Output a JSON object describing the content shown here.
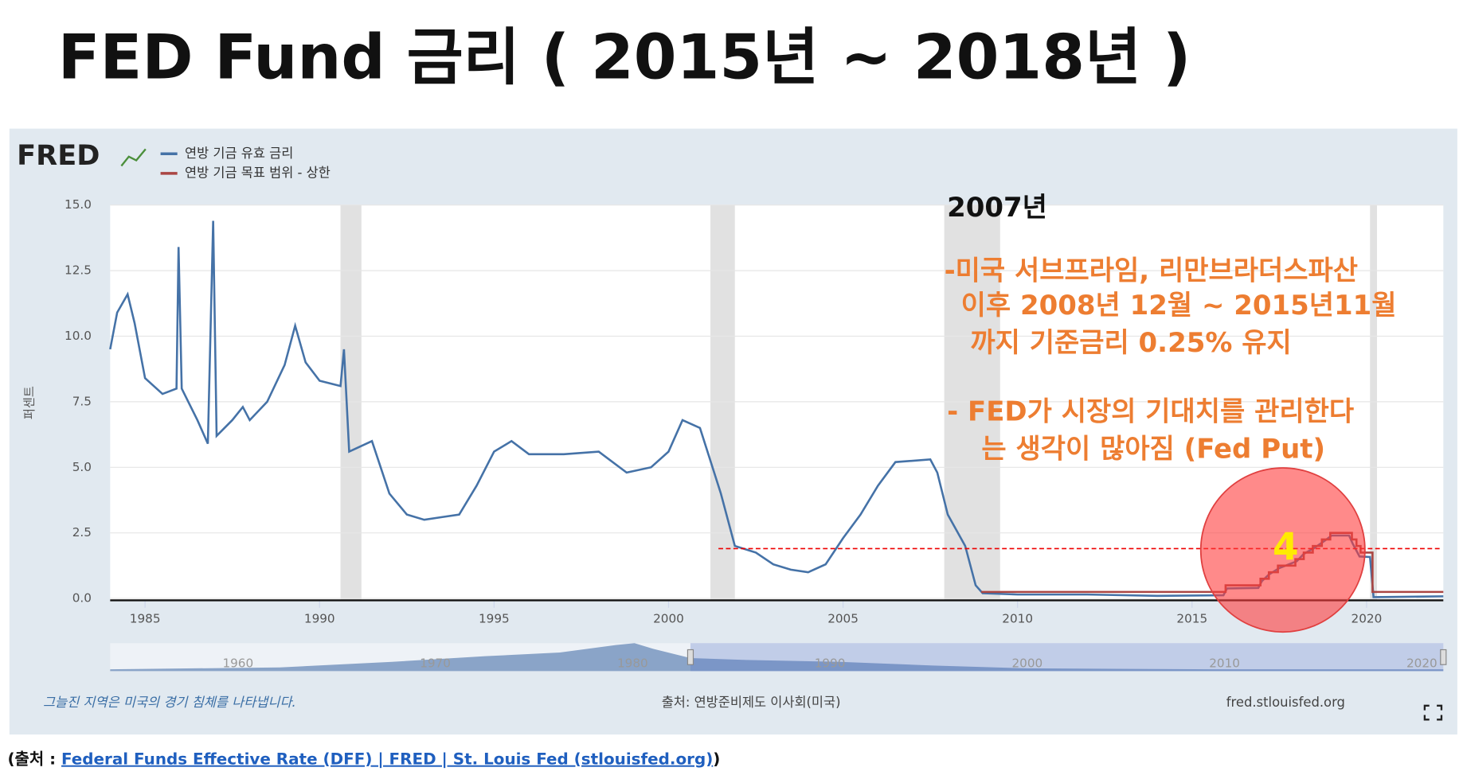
{
  "chart_data": {
    "type": "line",
    "title": "FED Fund 금리 ( 2015년 ~ 2018년 )",
    "logo": "FRED",
    "ylabel": "퍼센트",
    "xlim": [
      1984,
      2022.2
    ],
    "ylim": [
      0,
      15
    ],
    "xticks": [
      1985,
      1990,
      1995,
      2000,
      2005,
      2010,
      2015,
      2020
    ],
    "yticks": [
      {
        "value": 0,
        "label": "0.0"
      },
      2.5,
      {
        "value": 5,
        "label": "5.0"
      },
      7.5,
      {
        "value": 10,
        "label": "10.0"
      },
      12.5,
      {
        "value": 15,
        "label": "15.0"
      }
    ],
    "grid": true,
    "recessions": [
      [
        1990.6,
        1991.2
      ],
      [
        2001.2,
        2001.9
      ],
      [
        2007.9,
        2009.5
      ],
      [
        2020.1,
        2020.3
      ]
    ],
    "series": [
      {
        "name": "연방 기금 유효 금리",
        "color": "#4572a7",
        "x": [
          1984.0,
          1984.2,
          1984.5,
          1984.7,
          1985.0,
          1985.5,
          1985.9,
          1985.96,
          1986.05,
          1986.5,
          1986.8,
          1986.95,
          1987.05,
          1987.5,
          1987.8,
          1988.0,
          1988.5,
          1989.0,
          1989.3,
          1989.6,
          1990.0,
          1990.6,
          1990.7,
          1990.85,
          1991.5,
          1992.0,
          1992.5,
          1993.0,
          1993.5,
          1994.0,
          1994.5,
          1995.0,
          1995.5,
          1996.0,
          1997.0,
          1998.0,
          1998.8,
          1999.5,
          2000.0,
          2000.4,
          2000.9,
          2001.5,
          2001.9,
          2002.5,
          2003.0,
          2003.5,
          2004.0,
          2004.5,
          2005.0,
          2005.5,
          2006.0,
          2006.5,
          2007.5,
          2007.7,
          2008.0,
          2008.5,
          2008.8,
          2009.0,
          2010.0,
          2012.0,
          2014.0,
          2015.9,
          2016.0,
          2016.9,
          2017.0,
          2017.2,
          2017.5,
          2018.0,
          2018.2,
          2018.5,
          2018.8,
          2019.0,
          2019.5,
          2019.6,
          2019.8,
          2020.1,
          2020.2,
          2022.2
        ],
        "values": [
          9.5,
          10.9,
          11.6,
          10.5,
          8.4,
          7.8,
          8.0,
          13.4,
          8.0,
          6.8,
          5.9,
          14.4,
          6.2,
          6.8,
          7.3,
          6.8,
          7.5,
          8.9,
          10.4,
          9.0,
          8.3,
          8.1,
          9.5,
          5.6,
          6.0,
          4.0,
          3.2,
          3.0,
          3.1,
          3.2,
          4.3,
          5.6,
          6.0,
          5.5,
          5.5,
          5.6,
          4.8,
          5.0,
          5.6,
          6.8,
          6.5,
          4.0,
          2.0,
          1.75,
          1.3,
          1.1,
          1.0,
          1.3,
          2.3,
          3.2,
          4.3,
          5.2,
          5.3,
          4.8,
          3.2,
          2.0,
          0.5,
          0.2,
          0.15,
          0.15,
          0.1,
          0.12,
          0.38,
          0.4,
          0.66,
          0.91,
          1.16,
          1.42,
          1.7,
          1.92,
          2.2,
          2.4,
          2.4,
          2.1,
          1.6,
          1.58,
          0.05,
          0.08
        ]
      },
      {
        "name": "연방 기금 목표 범위 - 상한",
        "color": "#aa4643",
        "x": [
          2008.96,
          2015.96,
          2015.96,
          2016.96,
          2016.96,
          2017.2,
          2017.2,
          2017.46,
          2017.46,
          2017.96,
          2017.96,
          2018.2,
          2018.2,
          2018.46,
          2018.46,
          2018.72,
          2018.72,
          2018.96,
          2018.96,
          2019.58,
          2019.58,
          2019.71,
          2019.71,
          2019.83,
          2019.83,
          2020.17,
          2020.17,
          2022.2
        ],
        "values": [
          0.25,
          0.25,
          0.5,
          0.5,
          0.75,
          0.75,
          1.0,
          1.0,
          1.25,
          1.25,
          1.5,
          1.5,
          1.75,
          1.75,
          2.0,
          2.0,
          2.25,
          2.25,
          2.5,
          2.5,
          2.25,
          2.25,
          2.0,
          2.0,
          1.75,
          1.75,
          0.25,
          0.25
        ]
      }
    ],
    "reference_value": 1.9,
    "navigator_ticks": [
      "1960",
      "1970",
      "1980",
      "1990",
      "2000",
      "2010",
      "2020"
    ],
    "annotations": {
      "year": "2007년",
      "lines": [
        "-미국 서브프라임, 리만브라더스파산",
        " 이후 2008년 12월 ~ 2015년11월",
        "까지 기준금리 0.25% 유지",
        "-  FED가 시장의 기대치를 관리한다",
        "는 생각이 많아짐 (Fed Put)"
      ],
      "count": "4"
    },
    "footer": {
      "left": "그늘진 지역은 미국의 경기 침체를 나타냅니다.",
      "center": "출처: 연방준비제도 이사회(미국)",
      "right": "fred.stlouisfed.org"
    },
    "source": {
      "prefix": "(출처 : ",
      "link": "Federal Funds Effective Rate (DFF) | FRED | St. Louis Fed (stlouisfed.org)",
      "suffix": ")"
    }
  }
}
